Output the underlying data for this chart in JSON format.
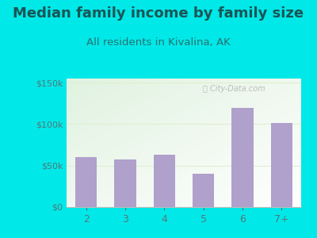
{
  "title": "Median family income by family size",
  "subtitle": "All residents in Kivalina, AK",
  "categories": [
    "2",
    "3",
    "4",
    "5",
    "6",
    "7+"
  ],
  "values": [
    60000,
    57000,
    63000,
    40000,
    120000,
    101000
  ],
  "bar_color": "#b0a0cc",
  "title_color": "#1a5555",
  "subtitle_color": "#2a7070",
  "bg_color": "#00e8e8",
  "yticks": [
    0,
    50000,
    100000,
    150000
  ],
  "ytick_labels": [
    "$0",
    "$50k",
    "$100k",
    "$150k"
  ],
  "ylim": [
    0,
    155000
  ],
  "title_fontsize": 13,
  "subtitle_fontsize": 9.5,
  "tick_color": "#557777",
  "grid_color": "#ddeecc"
}
